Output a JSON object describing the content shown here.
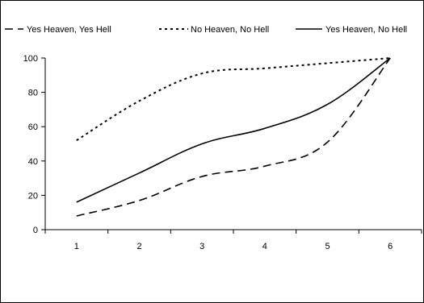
{
  "chart_data": {
    "type": "line",
    "title": "",
    "xlabel": "",
    "ylabel": "",
    "x": [
      1,
      2,
      3,
      4,
      5,
      6
    ],
    "xlim": [
      0.5,
      6.5
    ],
    "ylim": [
      0,
      100
    ],
    "yticks": [
      0,
      20,
      40,
      60,
      80,
      100
    ],
    "grid": false,
    "legend_position": "top",
    "series": [
      {
        "name": "Yes Heaven, Yes Hell",
        "style": "dashed",
        "color": "#000000",
        "values": [
          8,
          17,
          31,
          37,
          51,
          100
        ]
      },
      {
        "name": "No Heaven, No Hell",
        "style": "dotted",
        "color": "#000000",
        "values": [
          52,
          75,
          91,
          94,
          97,
          100
        ]
      },
      {
        "name": "Yes Heaven, No Hell",
        "style": "solid",
        "color": "#000000",
        "values": [
          16,
          33,
          50,
          59,
          73,
          100
        ]
      }
    ]
  }
}
